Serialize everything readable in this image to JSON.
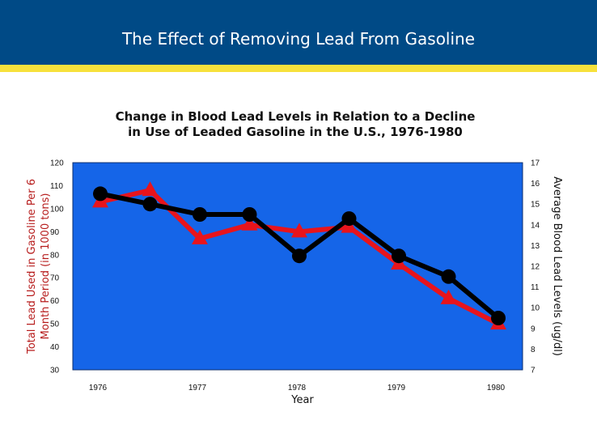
{
  "header": {
    "title": "The Effect of Removing Lead From Gasoline"
  },
  "colors": {
    "header_bg": "#004a86",
    "accent_bar": "#f7e13b",
    "plot_bg": "#1565e8",
    "series_gasoline": "#e8141c",
    "series_blood": "#000000"
  },
  "chart_data": {
    "type": "line",
    "title": "Change in Blood Lead Levels in Relation to a Decline in Use of Leaded Gasoline in the U.S., 1976-1980",
    "title_lines": [
      "Change in Blood Lead Levels in Relation to a Decline",
      "in Use of Leaded Gasoline in the U.S., 1976-1980"
    ],
    "xlabel": "Year",
    "ylabel_left_lines": [
      "Total Lead Used in Gasoline Per 6",
      "Month Period (in 1000 tons)"
    ],
    "ylabel_right": "Average Blood Lead Levels (ug/dl)",
    "x_tick_labels": [
      "1976",
      "1977",
      "1978",
      "1979",
      "1980"
    ],
    "x_tick_index": [
      0,
      2,
      4,
      6,
      8
    ],
    "x": [
      1976.0,
      1976.5,
      1977.0,
      1977.5,
      1978.0,
      1978.5,
      1979.0,
      1979.5,
      1980.0
    ],
    "ylim_left": [
      30,
      120
    ],
    "ylim_right": [
      7,
      17
    ],
    "yticks_left": [
      30,
      40,
      50,
      60,
      70,
      80,
      90,
      100,
      110,
      120
    ],
    "yticks_right": [
      7,
      8,
      9,
      10,
      11,
      12,
      13,
      14,
      15,
      16,
      17
    ],
    "series": [
      {
        "name": "Total Lead Used in Gasoline",
        "axis": "left",
        "marker": "triangle",
        "color": "#e8141c",
        "values": [
          103,
          108,
          87,
          93,
          90,
          92,
          76,
          61,
          50
        ]
      },
      {
        "name": "Average Blood Lead Levels",
        "axis": "right",
        "marker": "circle",
        "color": "#000000",
        "values": [
          15.5,
          15.0,
          14.5,
          14.5,
          12.5,
          14.3,
          12.5,
          11.5,
          9.5
        ]
      }
    ]
  }
}
